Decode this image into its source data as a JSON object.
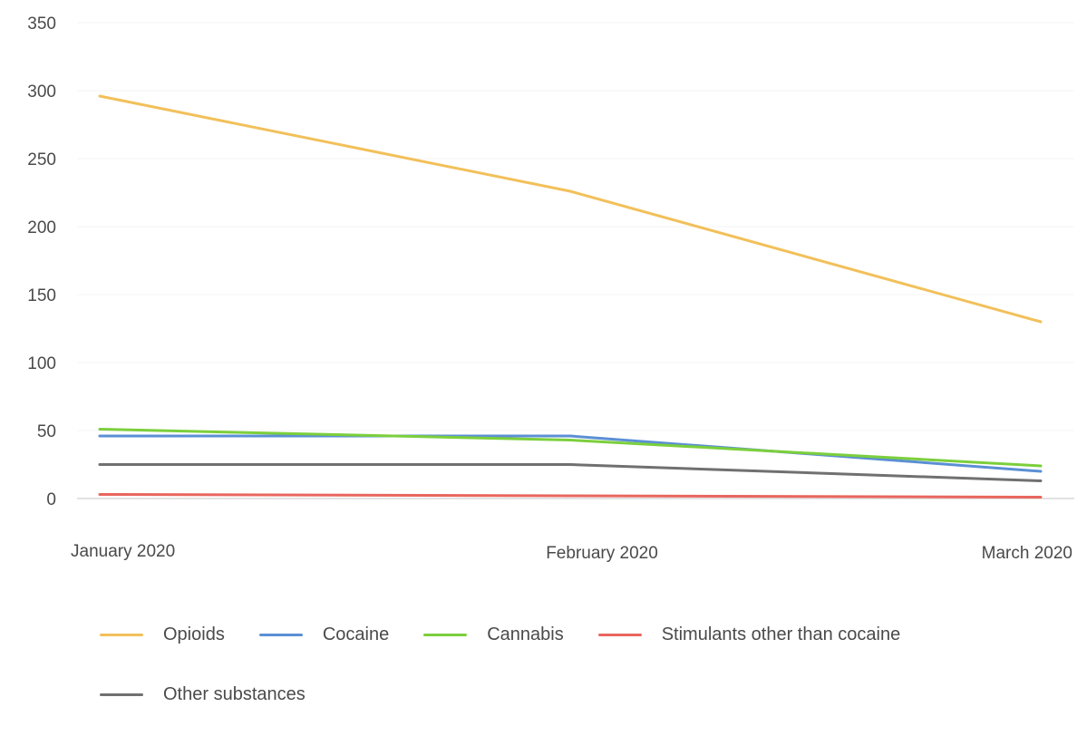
{
  "chart_data": {
    "type": "line",
    "title": "",
    "xlabel": "",
    "ylabel": "",
    "categories": [
      "January 2020",
      "February 2020",
      "March 2020"
    ],
    "ylim": [
      0,
      350
    ],
    "yticks": [
      0,
      50,
      100,
      150,
      200,
      250,
      300,
      350
    ],
    "grid": true,
    "legend_position": "bottom",
    "series": [
      {
        "name": "Opioids",
        "color": "#f2c05a",
        "values": [
          296,
          226,
          130
        ]
      },
      {
        "name": "Cocaine",
        "color": "#5b8fd4",
        "values": [
          46,
          46,
          20
        ]
      },
      {
        "name": "Cannabis",
        "color": "#7ccf3c",
        "values": [
          51,
          43,
          24
        ]
      },
      {
        "name": "Stimulants other than cocaine",
        "color": "#e9665e",
        "values": [
          3,
          2,
          1
        ]
      },
      {
        "name": "Other substances",
        "color": "#707070",
        "values": [
          25,
          25,
          13
        ]
      }
    ]
  }
}
